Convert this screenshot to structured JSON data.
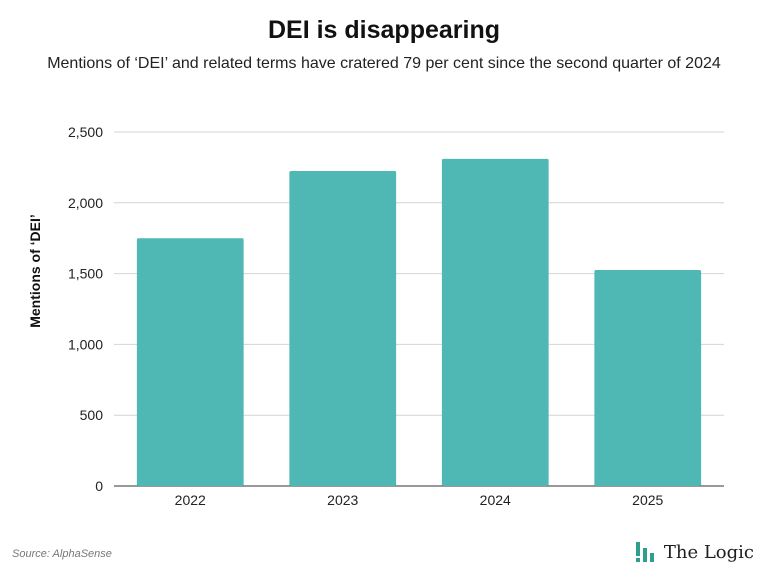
{
  "header": {
    "title": "DEI is disappearing",
    "subtitle": "Mentions of ‘DEI’ and related terms have cratered 79 per cent since the second quarter of 2024"
  },
  "chart_data": {
    "type": "bar",
    "title": "DEI is disappearing",
    "subtitle": "Mentions of ‘DEI’ and related terms have cratered 79 per cent since the second quarter of 2024",
    "xlabel": "",
    "ylabel": "Mentions of ‘DEI’",
    "categories": [
      "2022",
      "2023",
      "2024",
      "2025"
    ],
    "values": [
      1750,
      2225,
      2310,
      1525
    ],
    "ylim": [
      0,
      2500
    ],
    "yticks": [
      0,
      500,
      1000,
      1500,
      2000,
      2500
    ],
    "ytick_labels": [
      "0",
      "500",
      "1,000",
      "1,500",
      "2,000",
      "2,500"
    ],
    "grid": true,
    "bar_color": "#4fb8b4",
    "grid_color": "#d4d4d4"
  },
  "footer": {
    "source": "Source: AlphaSense",
    "brand_name": "The Logic",
    "brand_icon": "bar-chart-logo-icon",
    "brand_color": "#2f9e8f"
  }
}
